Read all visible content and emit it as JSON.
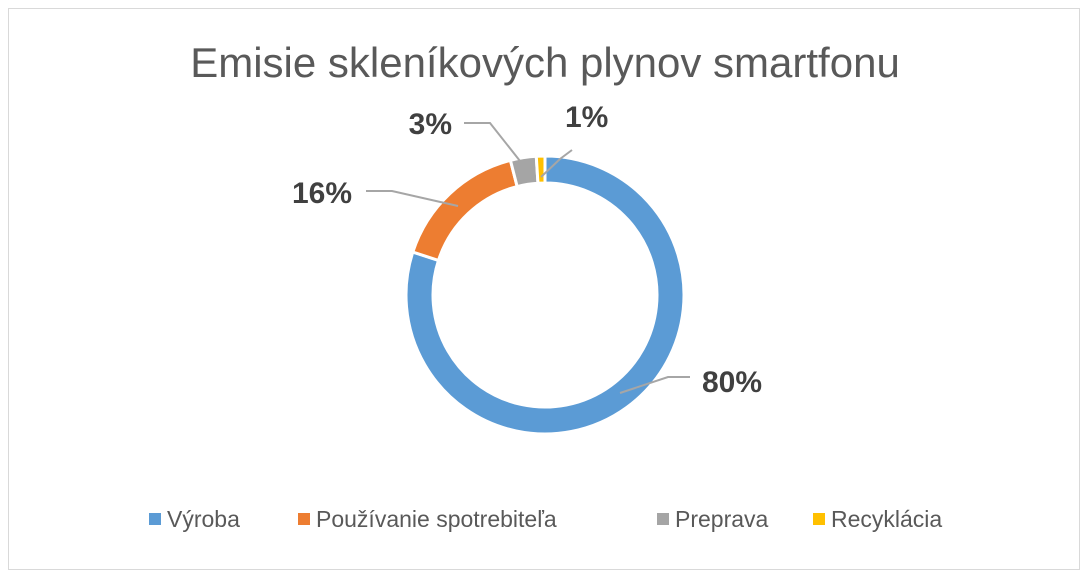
{
  "chart_data": {
    "type": "pie",
    "variant": "doughnut",
    "title": "Emisie skleníkových plynov smartfonu",
    "categories": [
      "Výroba",
      "Používanie spotrebiteľa",
      "Preprava",
      "Recyklácia"
    ],
    "values": [
      80,
      16,
      3,
      1
    ],
    "data_labels": [
      "80%",
      "16%",
      "3%",
      "1%"
    ],
    "colors": [
      "#5B9BD5",
      "#ED7D31",
      "#A5A5A5",
      "#FFC000"
    ],
    "legend_position": "bottom",
    "grid": false
  }
}
